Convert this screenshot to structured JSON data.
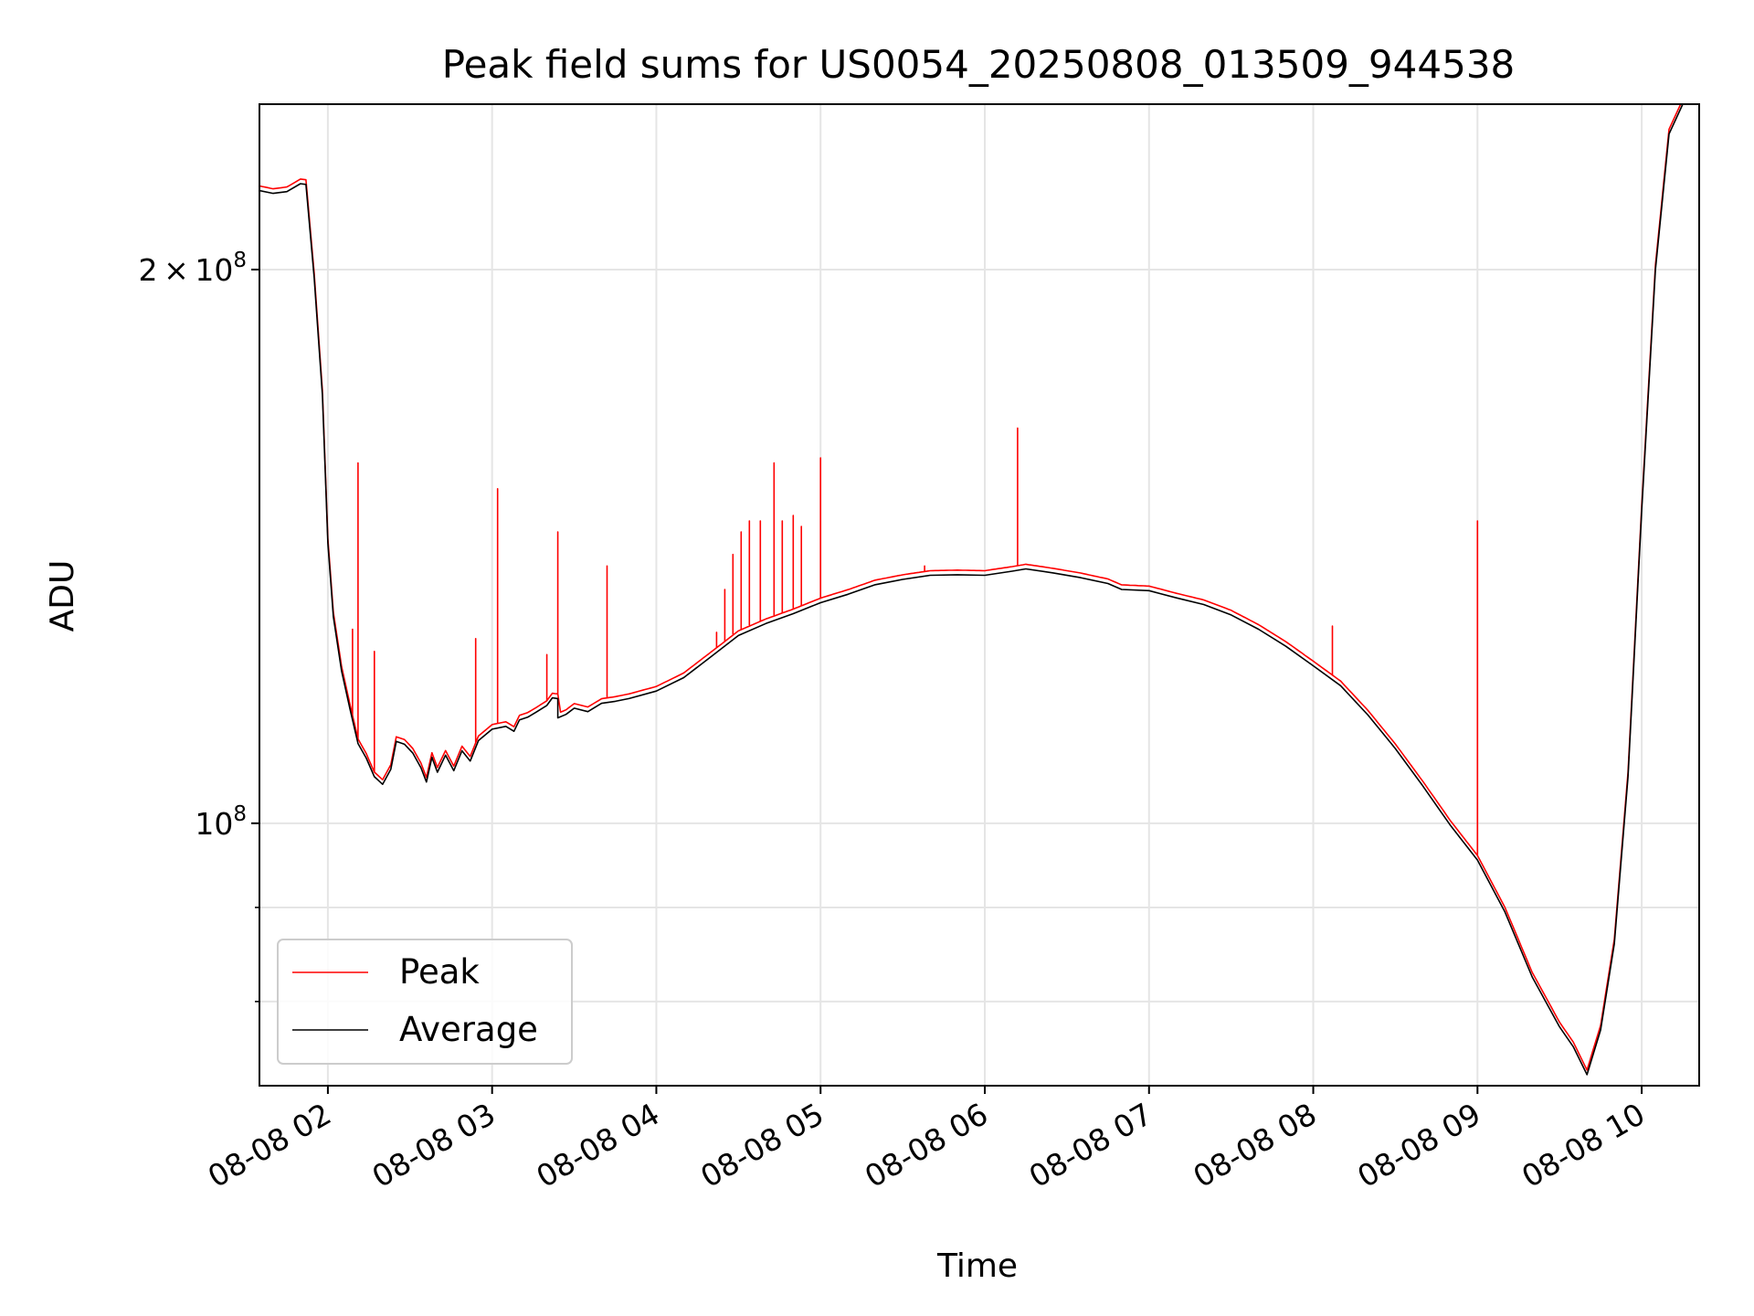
{
  "chart_data": {
    "type": "line",
    "title": "Peak field sums for US0054_20250808_013509_944538",
    "xlabel": "Time",
    "ylabel": "ADU",
    "x_axis": {
      "ticks": [
        "2025-08-08T02:00",
        "2025-08-08T03:00",
        "2025-08-08T04:00",
        "2025-08-08T05:00",
        "2025-08-08T06:00",
        "2025-08-08T07:00",
        "2025-08-08T08:00",
        "2025-08-08T09:00",
        "2025-08-08T10:00"
      ],
      "tick_labels": [
        "08-08 02",
        "08-08 03",
        "08-08 04",
        "08-08 05",
        "08-08 06",
        "08-08 07",
        "08-08 08",
        "08-08 09",
        "08-08 10"
      ],
      "xlim": [
        "2025-08-08T01:35",
        "2025-08-08T10:21"
      ]
    },
    "y_axis": {
      "scale": "log",
      "ylim": [
        72000000,
        246000000
      ],
      "major_ticks": [
        100000000,
        200000000
      ],
      "major_tick_labels": [
        {
          "base": "10",
          "exp": "8"
        },
        {
          "coef": "2",
          "base": "10",
          "exp": "8"
        }
      ],
      "minor_ticks": [
        80000000,
        90000000
      ]
    },
    "grid": true,
    "legend": {
      "position": "lower-left",
      "entries": [
        "Peak",
        "Average"
      ]
    },
    "colors": {
      "Peak": "#ff0000",
      "Average": "#000000",
      "grid": "#e5e5e5"
    },
    "series": [
      {
        "name": "Average",
        "points": [
          [
            "2025-08-08T01:35",
            220800000
          ],
          [
            "2025-08-08T01:40",
            220000000
          ],
          [
            "2025-08-08T01:45",
            220500000
          ],
          [
            "2025-08-08T01:50",
            222700000
          ],
          [
            "2025-08-08T01:52",
            222500000
          ],
          [
            "2025-08-08T01:55",
            198000000
          ],
          [
            "2025-08-08T01:58",
            171000000
          ],
          [
            "2025-08-08T02:00",
            142000000
          ],
          [
            "2025-08-08T02:02",
            129500000
          ],
          [
            "2025-08-08T02:05",
            121000000
          ],
          [
            "2025-08-08T02:08",
            115500000
          ],
          [
            "2025-08-08T02:11",
            110500000
          ],
          [
            "2025-08-08T02:14",
            108500000
          ],
          [
            "2025-08-08T02:17",
            106000000
          ],
          [
            "2025-08-08T02:20",
            105000000
          ],
          [
            "2025-08-08T02:23",
            107000000
          ],
          [
            "2025-08-08T02:25",
            110800000
          ],
          [
            "2025-08-08T02:28",
            110400000
          ],
          [
            "2025-08-08T02:31",
            109200000
          ],
          [
            "2025-08-08T02:34",
            107200000
          ],
          [
            "2025-08-08T02:36",
            105300000
          ],
          [
            "2025-08-08T02:38",
            108600000
          ],
          [
            "2025-08-08T02:40",
            106600000
          ],
          [
            "2025-08-08T02:43",
            108900000
          ],
          [
            "2025-08-08T02:46",
            106800000
          ],
          [
            "2025-08-08T02:49",
            109500000
          ],
          [
            "2025-08-08T02:52",
            108100000
          ],
          [
            "2025-08-08T02:55",
            110900000
          ],
          [
            "2025-08-08T03:00",
            112500000
          ],
          [
            "2025-08-08T03:05",
            112900000
          ],
          [
            "2025-08-08T03:08",
            112200000
          ],
          [
            "2025-08-08T03:10",
            113800000
          ],
          [
            "2025-08-08T03:13",
            114200000
          ],
          [
            "2025-08-08T03:16",
            114900000
          ],
          [
            "2025-08-08T03:20",
            115900000
          ],
          [
            "2025-08-08T03:22",
            117000000
          ],
          [
            "2025-08-08T03:24",
            116900000
          ],
          [
            "2025-08-08T03:24",
            114100000
          ],
          [
            "2025-08-08T03:27",
            114600000
          ],
          [
            "2025-08-08T03:30",
            115500000
          ],
          [
            "2025-08-08T03:35",
            115000000
          ],
          [
            "2025-08-08T03:40",
            116200000
          ],
          [
            "2025-08-08T03:45",
            116500000
          ],
          [
            "2025-08-08T03:50",
            116900000
          ],
          [
            "2025-08-08T04:00",
            118000000
          ],
          [
            "2025-08-08T04:10",
            120000000
          ],
          [
            "2025-08-08T04:20",
            123200000
          ],
          [
            "2025-08-08T04:30",
            126500000
          ],
          [
            "2025-08-08T04:40",
            128400000
          ],
          [
            "2025-08-08T04:50",
            130000000
          ],
          [
            "2025-08-08T05:00",
            131800000
          ],
          [
            "2025-08-08T05:10",
            133200000
          ],
          [
            "2025-08-08T05:20",
            134800000
          ],
          [
            "2025-08-08T05:30",
            135700000
          ],
          [
            "2025-08-08T05:40",
            136400000
          ],
          [
            "2025-08-08T05:50",
            136500000
          ],
          [
            "2025-08-08T06:00",
            136400000
          ],
          [
            "2025-08-08T06:10",
            137100000
          ],
          [
            "2025-08-08T06:15",
            137500000
          ],
          [
            "2025-08-08T06:25",
            136800000
          ],
          [
            "2025-08-08T06:35",
            136000000
          ],
          [
            "2025-08-08T06:45",
            135000000
          ],
          [
            "2025-08-08T06:50",
            134000000
          ],
          [
            "2025-08-08T07:00",
            133800000
          ],
          [
            "2025-08-08T07:10",
            132600000
          ],
          [
            "2025-08-08T07:20",
            131500000
          ],
          [
            "2025-08-08T07:30",
            129800000
          ],
          [
            "2025-08-08T07:40",
            127500000
          ],
          [
            "2025-08-08T07:50",
            124800000
          ],
          [
            "2025-08-08T08:00",
            121800000
          ],
          [
            "2025-08-08T08:10",
            118800000
          ],
          [
            "2025-08-08T08:20",
            114500000
          ],
          [
            "2025-08-08T08:30",
            109800000
          ],
          [
            "2025-08-08T08:40",
            104800000
          ],
          [
            "2025-08-08T08:50",
            99800000
          ],
          [
            "2025-08-08T09:00",
            95500000
          ],
          [
            "2025-08-08T09:10",
            89500000
          ],
          [
            "2025-08-08T09:20",
            82500000
          ],
          [
            "2025-08-08T09:30",
            77500000
          ],
          [
            "2025-08-08T09:35",
            75600000
          ],
          [
            "2025-08-08T09:40",
            73000000
          ],
          [
            "2025-08-08T09:45",
            77200000
          ],
          [
            "2025-08-08T09:50",
            86000000
          ],
          [
            "2025-08-08T09:55",
            106000000
          ],
          [
            "2025-08-08T10:00",
            148000000
          ],
          [
            "2025-08-08T10:05",
            200000000
          ],
          [
            "2025-08-08T10:10",
            237000000
          ],
          [
            "2025-08-08T10:15",
            246000000
          ],
          [
            "2025-08-08T10:21",
            246000000
          ]
        ]
      },
      {
        "name": "Peak",
        "follows": "Average",
        "spikes": [
          [
            "2025-08-08T02:09",
            127500000
          ],
          [
            "2025-08-08T02:11",
            157000000
          ],
          [
            "2025-08-08T02:17",
            124000000
          ],
          [
            "2025-08-08T02:54",
            126000000
          ],
          [
            "2025-08-08T03:02",
            152000000
          ],
          [
            "2025-08-08T03:20",
            123500000
          ],
          [
            "2025-08-08T03:24",
            144000000
          ],
          [
            "2025-08-08T03:42",
            138000000
          ],
          [
            "2025-08-08T04:22",
            127000000
          ],
          [
            "2025-08-08T04:25",
            134000000
          ],
          [
            "2025-08-08T04:28",
            140000000
          ],
          [
            "2025-08-08T04:31",
            144000000
          ],
          [
            "2025-08-08T04:34",
            146000000
          ],
          [
            "2025-08-08T04:38",
            146000000
          ],
          [
            "2025-08-08T04:43",
            157000000
          ],
          [
            "2025-08-08T04:46",
            146000000
          ],
          [
            "2025-08-08T04:50",
            147000000
          ],
          [
            "2025-08-08T04:53",
            145000000
          ],
          [
            "2025-08-08T05:00",
            158000000
          ],
          [
            "2025-08-08T05:38",
            138000000
          ],
          [
            "2025-08-08T06:12",
            164000000
          ],
          [
            "2025-08-08T08:07",
            128000000
          ],
          [
            "2025-08-08T09:00",
            146000000
          ]
        ]
      }
    ]
  }
}
